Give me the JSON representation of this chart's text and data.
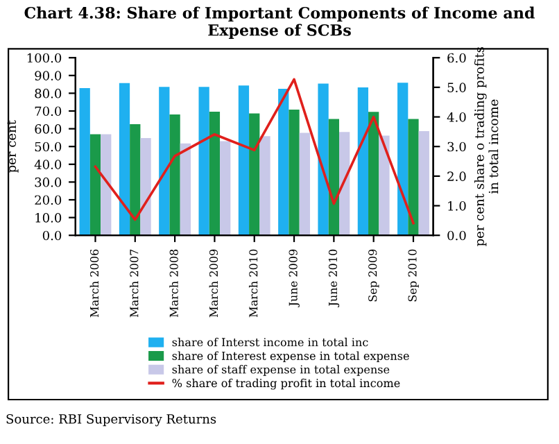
{
  "chart_data": {
    "type": "bar",
    "title": "Chart 4.38: Share of Important Components of Income and Expense of SCBs",
    "categories": [
      "March 2006",
      "March 2007",
      "March 2008",
      "March 2009",
      "March 2010",
      "June 2009",
      "June 2010",
      "Sep 2009",
      "Sep 2010"
    ],
    "series": [
      {
        "name": "share of Interst income in total inc",
        "color": "#1fb0f0",
        "values": [
          82.9,
          85.7,
          83.6,
          83.6,
          84.4,
          82.5,
          85.4,
          83.3,
          85.9
        ]
      },
      {
        "name": "share of Interest expense in total expense",
        "color": "#1a9a4a",
        "values": [
          56.9,
          62.6,
          68.0,
          69.6,
          68.6,
          70.8,
          65.5,
          69.5,
          65.5
        ]
      },
      {
        "name": "share of staff expense in total expense",
        "color": "#c8c8e8",
        "values": [
          56.9,
          54.8,
          51.7,
          53.0,
          55.8,
          57.7,
          58.2,
          56.1,
          58.7
        ]
      },
      {
        "name": "% share of trading profit in total income",
        "color": "#e0201c",
        "type": "line",
        "axis": "y2",
        "values": [
          2.32,
          0.53,
          2.68,
          3.41,
          2.88,
          5.27,
          1.07,
          4.0,
          0.41
        ]
      }
    ],
    "ylabel": "per cent",
    "y2label": "per cent share o trading profits\nin total income",
    "ylim": [
      0,
      100
    ],
    "yticks": [
      {
        "value": 0,
        "label": "0.0"
      },
      {
        "value": 10,
        "label": "10.0"
      },
      {
        "value": 20,
        "label": "20.0"
      },
      {
        "value": 30,
        "label": "30.0"
      },
      {
        "value": 40,
        "label": "40.0"
      },
      {
        "value": 50,
        "label": "50.0"
      },
      {
        "value": 60,
        "label": "60.0"
      },
      {
        "value": 70,
        "label": "70.0"
      },
      {
        "value": 80,
        "label": "80.0"
      },
      {
        "value": 90,
        "label": "90.0"
      },
      {
        "value": 100,
        "label": "100.0"
      }
    ],
    "y2lim": [
      0,
      6
    ],
    "y2ticks": [
      {
        "value": 0,
        "label": "0.0"
      },
      {
        "value": 1,
        "label": "1.0"
      },
      {
        "value": 2,
        "label": "2.0"
      },
      {
        "value": 3,
        "label": "3.0"
      },
      {
        "value": 4,
        "label": "4.0"
      },
      {
        "value": 5,
        "label": "5.0"
      },
      {
        "value": 6,
        "label": "6.0"
      }
    ],
    "legend": "bottom",
    "grid": false,
    "annotations": [
      "Source: RBI Supervisory Returns"
    ]
  }
}
